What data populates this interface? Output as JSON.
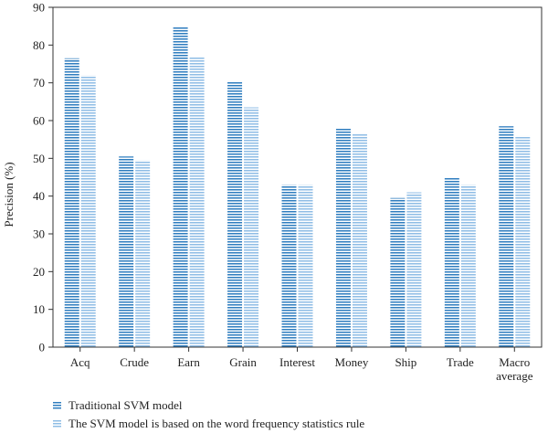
{
  "chart_data": {
    "type": "bar",
    "title": "",
    "xlabel": "",
    "ylabel": "Precision (%)",
    "ylim": [
      0,
      90
    ],
    "yticks": [
      0,
      10,
      20,
      30,
      40,
      50,
      60,
      70,
      80,
      90
    ],
    "categories": [
      "Acq",
      "Crude",
      "Earn",
      "Grain",
      "Interest",
      "Money",
      "Ship",
      "Trade",
      "Macro average"
    ],
    "category_lines": [
      [
        "Acq"
      ],
      [
        "Crude"
      ],
      [
        "Earn"
      ],
      [
        "Grain"
      ],
      [
        "Interest"
      ],
      [
        "Money"
      ],
      [
        "Ship"
      ],
      [
        "Trade"
      ],
      [
        "Macro",
        "average"
      ]
    ],
    "series": [
      {
        "name": "Traditional SVM model",
        "color": "#2f7dbf",
        "values": [
          76.5,
          50.5,
          85,
          70.5,
          43,
          58,
          39.5,
          45,
          58.5
        ]
      },
      {
        "name": "The SVM model is based on the word frequency statistics rule",
        "color": "#8fbde5",
        "values": [
          72,
          49.5,
          77,
          63.5,
          43,
          56.5,
          41,
          43,
          56
        ]
      }
    ],
    "grid": false,
    "legend_position": "bottom-left"
  }
}
